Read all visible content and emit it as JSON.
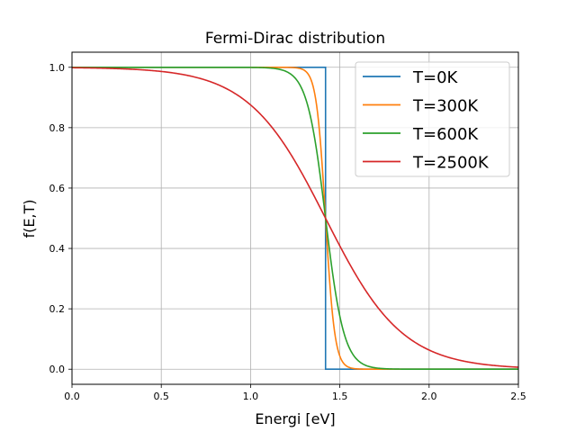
{
  "chart_data": {
    "type": "line",
    "title": "Fermi-Dirac distribution",
    "xlabel": "Energi [eV]",
    "ylabel": "f(E,T)",
    "xlim": [
      0,
      2.5
    ],
    "ylim": [
      -0.05,
      1.05
    ],
    "xticks": [
      0,
      0.5,
      1.0,
      1.5,
      2.0,
      2.5
    ],
    "xtick_labels": [
      "0.0",
      "0.5",
      "1.0",
      "1.5",
      "2.0",
      "2.5"
    ],
    "yticks": [
      0,
      0.2,
      0.4,
      0.6,
      0.8,
      1.0
    ],
    "ytick_labels": [
      "0.0",
      "0.2",
      "0.4",
      "0.6",
      "0.8",
      "1.0"
    ],
    "grid": true,
    "legend_position": "top-right",
    "fermi_energy_eV": 1.42,
    "series": [
      {
        "name": "T=0K",
        "color": "#1f77b4",
        "temperature_K": 0
      },
      {
        "name": "T=300K",
        "color": "#ff7f0e",
        "temperature_K": 300
      },
      {
        "name": "T=600K",
        "color": "#2ca02c",
        "temperature_K": 600
      },
      {
        "name": "T=2500K",
        "color": "#d62728",
        "temperature_K": 2500
      }
    ]
  }
}
